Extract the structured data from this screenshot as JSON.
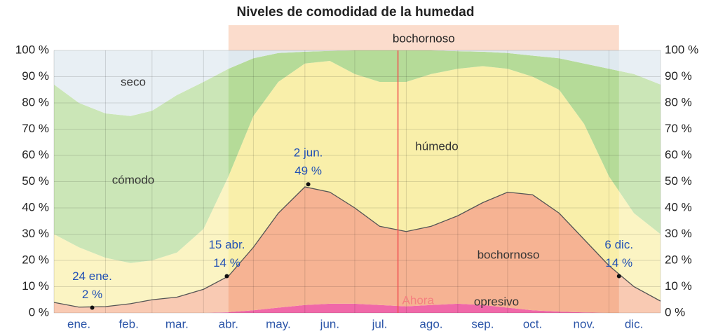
{
  "chart_data": {
    "type": "stacked_area",
    "title": "Niveles de comodidad de la humedad",
    "x": [
      0,
      15,
      31,
      46,
      59,
      74,
      90,
      105,
      120,
      135,
      151,
      166,
      181,
      196,
      212,
      227,
      243,
      258,
      273,
      288,
      304,
      319,
      334,
      349,
      365
    ],
    "xlim": [
      0,
      365
    ],
    "xticks": [
      {
        "value": 15,
        "label": "ene."
      },
      {
        "value": 45,
        "label": "feb."
      },
      {
        "value": 74,
        "label": "mar."
      },
      {
        "value": 105,
        "label": "abr."
      },
      {
        "value": 135,
        "label": "may."
      },
      {
        "value": 166,
        "label": "jun."
      },
      {
        "value": 196,
        "label": "jul."
      },
      {
        "value": 227,
        "label": "ago."
      },
      {
        "value": 258,
        "label": "sep."
      },
      {
        "value": 288,
        "label": "oct."
      },
      {
        "value": 319,
        "label": "nov."
      },
      {
        "value": 349,
        "label": "dic."
      }
    ],
    "xgrid": [
      0,
      31,
      59,
      90,
      120,
      151,
      181,
      212,
      243,
      273,
      304,
      334,
      365
    ],
    "ylim": [
      0,
      100
    ],
    "yticks": [
      {
        "value": 0,
        "label": "0 %"
      },
      {
        "value": 10,
        "label": "10 %"
      },
      {
        "value": 20,
        "label": "20 %"
      },
      {
        "value": 30,
        "label": "30 %"
      },
      {
        "value": 40,
        "label": "40 %"
      },
      {
        "value": 50,
        "label": "50 %"
      },
      {
        "value": 60,
        "label": "60 %"
      },
      {
        "value": 70,
        "label": "70 %"
      },
      {
        "value": 80,
        "label": "80 %"
      },
      {
        "value": 90,
        "label": "90 %"
      },
      {
        "value": 100,
        "label": "100 %"
      }
    ],
    "grid": true,
    "series": [
      {
        "name": "opresivo",
        "color": "#f068a8",
        "values": [
          0,
          0,
          0,
          0,
          0,
          0,
          0,
          0.3,
          1,
          2,
          3,
          3.5,
          3.5,
          3,
          2.5,
          3,
          3.5,
          3,
          2,
          1,
          0.5,
          0.2,
          0,
          0,
          0
        ]
      },
      {
        "name": "bochornoso",
        "color": "#f6b393",
        "values": [
          4,
          2.2,
          2.4,
          3.5,
          5,
          6,
          9,
          13.7,
          24,
          36,
          45,
          42.5,
          36.5,
          30,
          28.5,
          30,
          33.5,
          39,
          44,
          44,
          37.5,
          27.8,
          18,
          10,
          4.5
        ]
      },
      {
        "name": "húmedo",
        "color": "#f9efaa",
        "values": [
          26,
          22.8,
          18.6,
          15.5,
          15,
          17,
          23,
          38,
          50,
          50,
          47,
          50,
          51,
          55,
          57,
          58,
          56,
          52,
          47,
          45,
          47,
          44,
          34,
          28,
          25.5
        ]
      },
      {
        "name": "cómodo",
        "color": "#b5db98",
        "values": [
          57,
          55,
          55,
          56,
          57,
          60,
          56,
          41,
          22,
          11,
          4.5,
          3.8,
          9,
          12,
          12,
          9,
          6.7,
          5.5,
          6,
          8,
          12,
          23,
          41,
          53,
          57
        ]
      },
      {
        "name": "seco",
        "color": "#dfe9ef",
        "values": [
          13,
          20,
          24,
          25,
          23,
          17,
          12,
          7,
          3,
          1,
          0.5,
          0.2,
          0,
          0,
          0,
          0,
          0.3,
          0.5,
          1,
          2,
          3,
          5,
          7,
          9,
          13
        ]
      }
    ],
    "annotations": [
      {
        "label": "24 ene.",
        "x": 23,
        "value": 2,
        "value_label": "2 %"
      },
      {
        "label": "15 abr.",
        "x": 104,
        "value": 14,
        "value_label": "14 %"
      },
      {
        "label": "2 jun.",
        "x": 153,
        "value": 49,
        "value_label": "49 %"
      },
      {
        "label": "6 dic.",
        "x": 340,
        "value": 14,
        "value_label": "14 %"
      }
    ],
    "band": {
      "label": "bochornoso",
      "start": 105,
      "end": 340
    },
    "now": {
      "label": "Ahora",
      "x": 207
    }
  }
}
